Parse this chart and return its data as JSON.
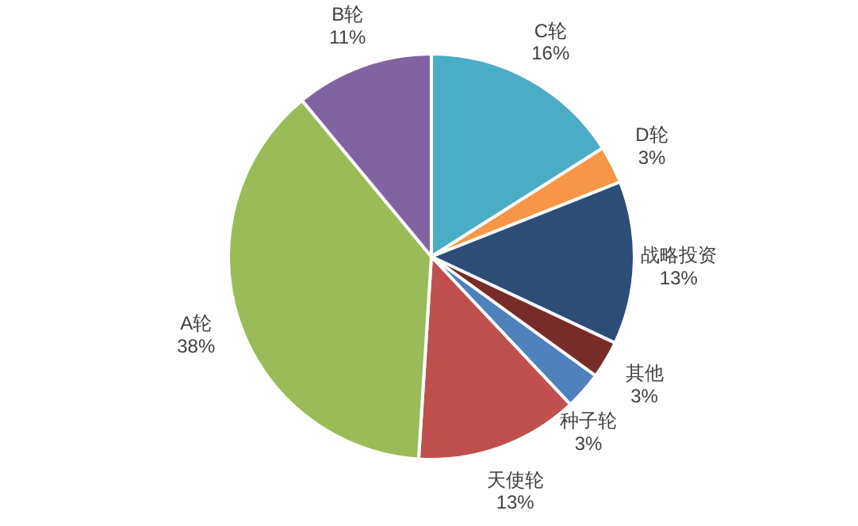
{
  "chart_data": {
    "type": "pie",
    "categories": [
      "C轮",
      "D轮",
      "战略投资",
      "其他",
      "种子轮",
      "天使轮",
      "A轮",
      "B轮"
    ],
    "values": [
      16,
      3,
      13,
      3,
      3,
      13,
      38,
      11
    ],
    "colors": [
      "#4bacc6",
      "#f79646",
      "#2c4d75",
      "#772c2a",
      "#4f81bd",
      "#c0504d",
      "#9bbb59",
      "#8064a2"
    ],
    "value_labels": [
      "16%",
      "3%",
      "13%",
      "3%",
      "3%",
      "13%",
      "38%",
      "11%"
    ]
  }
}
